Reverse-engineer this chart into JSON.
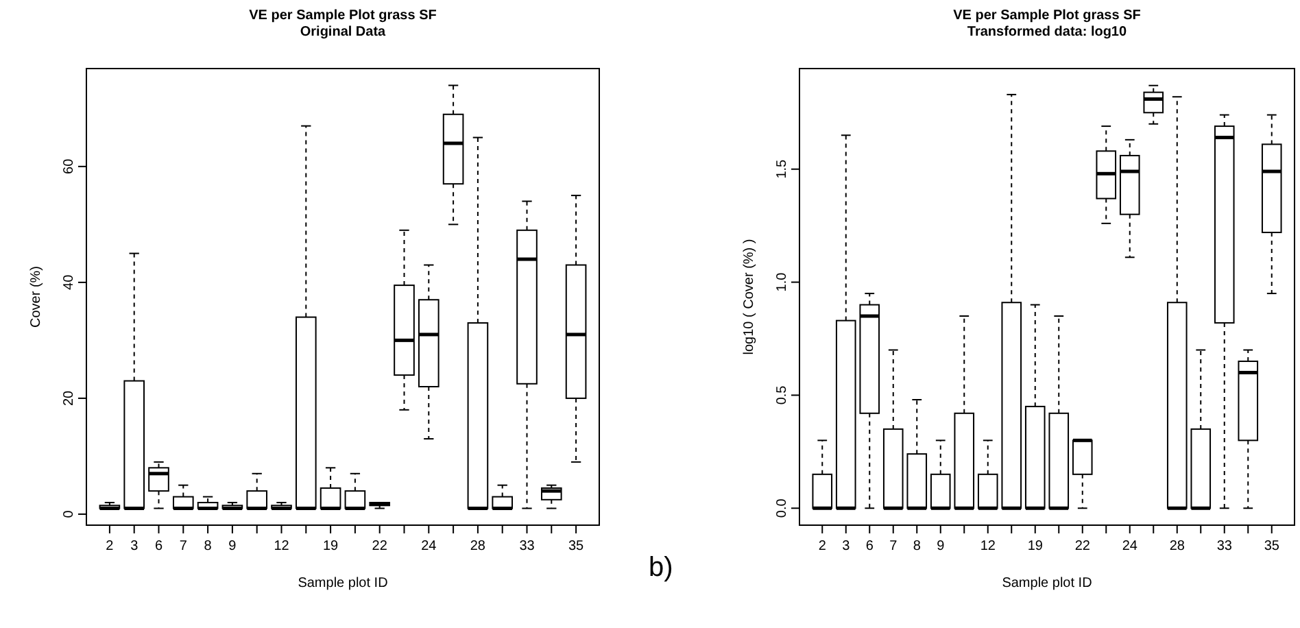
{
  "chart_data": [
    {
      "type": "box",
      "title": "VE per Sample Plot grass SF",
      "subtitle": "Original Data",
      "xlabel": "Sample plot ID",
      "ylabel": "Cover (%)",
      "categories": [
        "2",
        "3",
        "6",
        "7",
        "8",
        "9",
        null,
        "12",
        null,
        "19",
        null,
        "22",
        null,
        "24",
        null,
        "28",
        null,
        "33",
        null,
        "35"
      ],
      "ylim": [
        -1.9,
        76.9
      ],
      "yticks": [
        0,
        20,
        40,
        60
      ],
      "boxes": [
        {
          "low": 1,
          "q1": 1,
          "median": 1,
          "q3": 1.5,
          "high": 2
        },
        {
          "low": 1,
          "q1": 1,
          "median": 1,
          "q3": 23,
          "high": 45
        },
        {
          "low": 1,
          "q1": 4,
          "median": 7,
          "q3": 8,
          "high": 9
        },
        {
          "low": 1,
          "q1": 1,
          "median": 1,
          "q3": 3,
          "high": 5
        },
        {
          "low": 1,
          "q1": 1,
          "median": 1,
          "q3": 2,
          "high": 3
        },
        {
          "low": 1,
          "q1": 1,
          "median": 1,
          "q3": 1.5,
          "high": 2
        },
        {
          "low": 1,
          "q1": 1,
          "median": 1,
          "q3": 4,
          "high": 7
        },
        {
          "low": 1,
          "q1": 1,
          "median": 1,
          "q3": 1.5,
          "high": 2
        },
        {
          "low": 1,
          "q1": 1,
          "median": 1,
          "q3": 34,
          "high": 67
        },
        {
          "low": 1,
          "q1": 1,
          "median": 1,
          "q3": 4.5,
          "high": 8
        },
        {
          "low": 1,
          "q1": 1,
          "median": 1,
          "q3": 4,
          "high": 7
        },
        {
          "low": 1,
          "q1": 1.5,
          "median": 1.7,
          "q3": 2,
          "high": 2
        },
        {
          "low": 18,
          "q1": 24,
          "median": 30,
          "q3": 39.5,
          "high": 49
        },
        {
          "low": 13,
          "q1": 22,
          "median": 31,
          "q3": 37,
          "high": 43
        },
        {
          "low": 50,
          "q1": 57,
          "median": 64,
          "q3": 69,
          "high": 74
        },
        {
          "low": 1,
          "q1": 1,
          "median": 1,
          "q3": 33,
          "high": 65
        },
        {
          "low": 1,
          "q1": 1,
          "median": 1,
          "q3": 3,
          "high": 5
        },
        {
          "low": 1,
          "q1": 22.5,
          "median": 44,
          "q3": 49,
          "high": 54
        },
        {
          "low": 1,
          "q1": 2.5,
          "median": 4,
          "q3": 4.5,
          "high": 5
        },
        {
          "low": 9,
          "q1": 20,
          "median": 31,
          "q3": 43,
          "high": 55
        }
      ]
    },
    {
      "type": "box",
      "title": "VE per Sample Plot grass SF",
      "subtitle": "Transformed data: log10",
      "xlabel": "Sample plot ID",
      "ylabel": "log10 ( Cover (%) )",
      "annotations": [
        "b)"
      ],
      "categories": [
        "2",
        "3",
        "6",
        "7",
        "8",
        "9",
        null,
        "12",
        null,
        "19",
        null,
        "22",
        null,
        "24",
        null,
        "28",
        null,
        "33",
        null,
        "35"
      ],
      "ylim": [
        -0.075,
        1.945
      ],
      "yticks": [
        {
          "value": 0,
          "label": "0.0"
        },
        1.5,
        {
          "value": 1,
          "label": "1.0"
        },
        0.5
      ],
      "boxes": [
        {
          "low": 0,
          "q1": 0,
          "median": 0,
          "q3": 0.15,
          "high": 0.3
        },
        {
          "low": 0,
          "q1": 0,
          "median": 0,
          "q3": 0.83,
          "high": 1.65
        },
        {
          "low": 0,
          "q1": 0.42,
          "median": 0.85,
          "q3": 0.9,
          "high": 0.95
        },
        {
          "low": 0,
          "q1": 0,
          "median": 0,
          "q3": 0.35,
          "high": 0.7
        },
        {
          "low": 0,
          "q1": 0,
          "median": 0,
          "q3": 0.24,
          "high": 0.48
        },
        {
          "low": 0,
          "q1": 0,
          "median": 0,
          "q3": 0.15,
          "high": 0.3
        },
        {
          "low": 0,
          "q1": 0,
          "median": 0,
          "q3": 0.42,
          "high": 0.85
        },
        {
          "low": 0,
          "q1": 0,
          "median": 0,
          "q3": 0.15,
          "high": 0.3
        },
        {
          "low": 0,
          "q1": 0,
          "median": 0,
          "q3": 0.91,
          "high": 1.83
        },
        {
          "low": 0,
          "q1": 0,
          "median": 0,
          "q3": 0.45,
          "high": 0.9
        },
        {
          "low": 0,
          "q1": 0,
          "median": 0,
          "q3": 0.42,
          "high": 0.85
        },
        {
          "low": 0,
          "q1": 0.15,
          "median": 0.3,
          "q3": 0.3,
          "high": 0.3
        },
        {
          "low": 1.26,
          "q1": 1.37,
          "median": 1.48,
          "q3": 1.58,
          "high": 1.69
        },
        {
          "low": 1.11,
          "q1": 1.3,
          "median": 1.49,
          "q3": 1.56,
          "high": 1.63
        },
        {
          "low": 1.7,
          "q1": 1.75,
          "median": 1.81,
          "q3": 1.84,
          "high": 1.87
        },
        {
          "low": 0,
          "q1": 0,
          "median": 0,
          "q3": 0.91,
          "high": 1.82
        },
        {
          "low": 0,
          "q1": 0,
          "median": 0,
          "q3": 0.35,
          "high": 0.7
        },
        {
          "low": 0,
          "q1": 0.82,
          "median": 1.64,
          "q3": 1.69,
          "high": 1.74
        },
        {
          "low": 0,
          "q1": 0.3,
          "median": 0.6,
          "q3": 0.65,
          "high": 0.7
        },
        {
          "low": 0.95,
          "q1": 1.22,
          "median": 1.49,
          "q3": 1.61,
          "high": 1.74
        }
      ]
    }
  ]
}
